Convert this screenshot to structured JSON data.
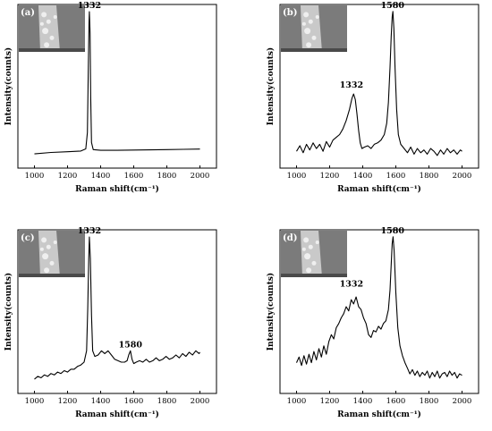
{
  "chart_data": [
    {
      "panel": "(a)",
      "type": "line",
      "xlabel": "Raman shift(cm⁻¹)",
      "ylabel": "Intensity(counts)",
      "xticks": [
        1000,
        1200,
        1400,
        1600,
        1800,
        2000
      ],
      "xlim": [
        900,
        2100
      ],
      "ylim": [
        -0.1,
        1.05
      ],
      "peak_labels": [
        {
          "x": 1332,
          "y": 1.0,
          "text": "1332"
        }
      ],
      "series": [
        {
          "x": [
            1000,
            1100,
            1200,
            1280,
            1310,
            1320,
            1325,
            1330,
            1332,
            1336,
            1340,
            1345,
            1355,
            1400,
            1500,
            1600,
            1700,
            1800,
            1900,
            2000
          ],
          "y": [
            0.0,
            0.01,
            0.015,
            0.02,
            0.035,
            0.15,
            0.55,
            0.92,
            1.0,
            0.85,
            0.4,
            0.08,
            0.03,
            0.025,
            0.025,
            0.027,
            0.028,
            0.03,
            0.032,
            0.034
          ]
        }
      ]
    },
    {
      "panel": "(b)",
      "type": "line",
      "xlabel": "Raman shift(cm⁻¹)",
      "ylabel": "Intensity(counts)",
      "xticks": [
        1000,
        1200,
        1400,
        1600,
        1800,
        2000
      ],
      "xlim": [
        900,
        2100
      ],
      "ylim": [
        -0.12,
        1.05
      ],
      "peak_labels": [
        {
          "x": 1332,
          "y": 0.43,
          "text": "1332"
        },
        {
          "x": 1580,
          "y": 1.0,
          "text": "1580"
        }
      ],
      "series": [
        {
          "x": [
            1000,
            1020,
            1040,
            1060,
            1080,
            1100,
            1120,
            1140,
            1160,
            1180,
            1200,
            1220,
            1240,
            1260,
            1280,
            1300,
            1320,
            1335,
            1345,
            1355,
            1365,
            1375,
            1385,
            1395,
            1410,
            1430,
            1450,
            1470,
            1490,
            1510,
            1530,
            1545,
            1555,
            1565,
            1572,
            1578,
            1582,
            1588,
            1595,
            1605,
            1615,
            1630,
            1650,
            1670,
            1690,
            1710,
            1730,
            1750,
            1770,
            1790,
            1810,
            1830,
            1850,
            1870,
            1890,
            1910,
            1930,
            1950,
            1970,
            1990,
            2000
          ],
          "y": [
            0.0,
            0.04,
            -0.01,
            0.05,
            0.01,
            0.06,
            0.02,
            0.05,
            0.0,
            0.07,
            0.03,
            0.08,
            0.1,
            0.12,
            0.16,
            0.22,
            0.3,
            0.38,
            0.41,
            0.37,
            0.27,
            0.15,
            0.06,
            0.02,
            0.03,
            0.04,
            0.02,
            0.05,
            0.06,
            0.08,
            0.12,
            0.2,
            0.35,
            0.6,
            0.82,
            0.96,
            1.0,
            0.88,
            0.6,
            0.3,
            0.12,
            0.05,
            0.02,
            -0.01,
            0.03,
            -0.02,
            0.02,
            -0.01,
            0.01,
            -0.02,
            0.02,
            0.0,
            -0.03,
            0.01,
            -0.02,
            0.02,
            -0.01,
            0.01,
            -0.02,
            0.01,
            0.0
          ]
        }
      ]
    },
    {
      "panel": "(c)",
      "type": "line",
      "xlabel": "Raman shift(cm⁻¹)",
      "ylabel": "Intensity(counts)",
      "xticks": [
        1000,
        1200,
        1400,
        1600,
        1800,
        2000
      ],
      "xlim": [
        900,
        2100
      ],
      "ylim": [
        -0.1,
        1.05
      ],
      "peak_labels": [
        {
          "x": 1332,
          "y": 1.0,
          "text": "1332"
        },
        {
          "x": 1580,
          "y": 0.2,
          "text": "1580"
        }
      ],
      "series": [
        {
          "x": [
            1000,
            1020,
            1040,
            1060,
            1080,
            1100,
            1120,
            1140,
            1160,
            1180,
            1200,
            1220,
            1240,
            1260,
            1280,
            1300,
            1315,
            1322,
            1328,
            1332,
            1338,
            1345,
            1352,
            1365,
            1385,
            1405,
            1425,
            1445,
            1465,
            1485,
            1505,
            1525,
            1545,
            1560,
            1570,
            1580,
            1590,
            1600,
            1615,
            1635,
            1655,
            1675,
            1695,
            1715,
            1735,
            1755,
            1775,
            1795,
            1815,
            1835,
            1855,
            1875,
            1895,
            1915,
            1935,
            1955,
            1975,
            1995,
            2000
          ],
          "y": [
            0.0,
            0.02,
            0.01,
            0.03,
            0.02,
            0.04,
            0.03,
            0.05,
            0.04,
            0.06,
            0.05,
            0.07,
            0.07,
            0.09,
            0.1,
            0.12,
            0.2,
            0.5,
            0.85,
            1.0,
            0.85,
            0.45,
            0.2,
            0.16,
            0.17,
            0.2,
            0.18,
            0.2,
            0.17,
            0.14,
            0.13,
            0.12,
            0.12,
            0.13,
            0.17,
            0.2,
            0.14,
            0.11,
            0.12,
            0.13,
            0.12,
            0.14,
            0.12,
            0.13,
            0.15,
            0.13,
            0.14,
            0.16,
            0.14,
            0.15,
            0.17,
            0.15,
            0.18,
            0.16,
            0.19,
            0.17,
            0.2,
            0.18,
            0.19
          ]
        }
      ]
    },
    {
      "panel": "(d)",
      "type": "line",
      "xlabel": "Raman shift(cm⁻¹)",
      "ylabel": "Intensity(counts)",
      "xticks": [
        1000,
        1200,
        1400,
        1600,
        1800,
        2000
      ],
      "xlim": [
        900,
        2100
      ],
      "ylim": [
        -0.12,
        1.05
      ],
      "peak_labels": [
        {
          "x": 1332,
          "y": 0.62,
          "text": "1332"
        },
        {
          "x": 1580,
          "y": 1.0,
          "text": "1580"
        }
      ],
      "series": [
        {
          "x": [
            1000,
            1015,
            1030,
            1045,
            1060,
            1075,
            1090,
            1105,
            1120,
            1135,
            1150,
            1165,
            1180,
            1195,
            1210,
            1225,
            1240,
            1255,
            1270,
            1285,
            1300,
            1315,
            1330,
            1345,
            1360,
            1375,
            1390,
            1405,
            1420,
            1435,
            1450,
            1465,
            1480,
            1495,
            1510,
            1525,
            1540,
            1555,
            1565,
            1572,
            1578,
            1583,
            1590,
            1600,
            1612,
            1625,
            1640,
            1655,
            1670,
            1685,
            1700,
            1715,
            1730,
            1745,
            1760,
            1775,
            1790,
            1805,
            1820,
            1835,
            1850,
            1865,
            1880,
            1895,
            1910,
            1925,
            1940,
            1955,
            1970,
            1985,
            2000
          ],
          "y": [
            0.1,
            0.14,
            0.08,
            0.15,
            0.09,
            0.16,
            0.1,
            0.18,
            0.12,
            0.2,
            0.14,
            0.22,
            0.16,
            0.25,
            0.3,
            0.27,
            0.35,
            0.38,
            0.42,
            0.45,
            0.5,
            0.47,
            0.55,
            0.52,
            0.57,
            0.5,
            0.48,
            0.42,
            0.38,
            0.3,
            0.28,
            0.33,
            0.32,
            0.36,
            0.34,
            0.38,
            0.4,
            0.48,
            0.62,
            0.8,
            0.95,
            1.0,
            0.9,
            0.6,
            0.35,
            0.22,
            0.15,
            0.1,
            0.06,
            0.02,
            0.05,
            0.01,
            0.04,
            0.0,
            0.03,
            0.01,
            0.04,
            -0.01,
            0.03,
            0.0,
            0.04,
            -0.01,
            0.02,
            0.03,
            0.0,
            0.04,
            0.01,
            0.03,
            -0.01,
            0.02,
            0.01
          ]
        }
      ]
    }
  ]
}
